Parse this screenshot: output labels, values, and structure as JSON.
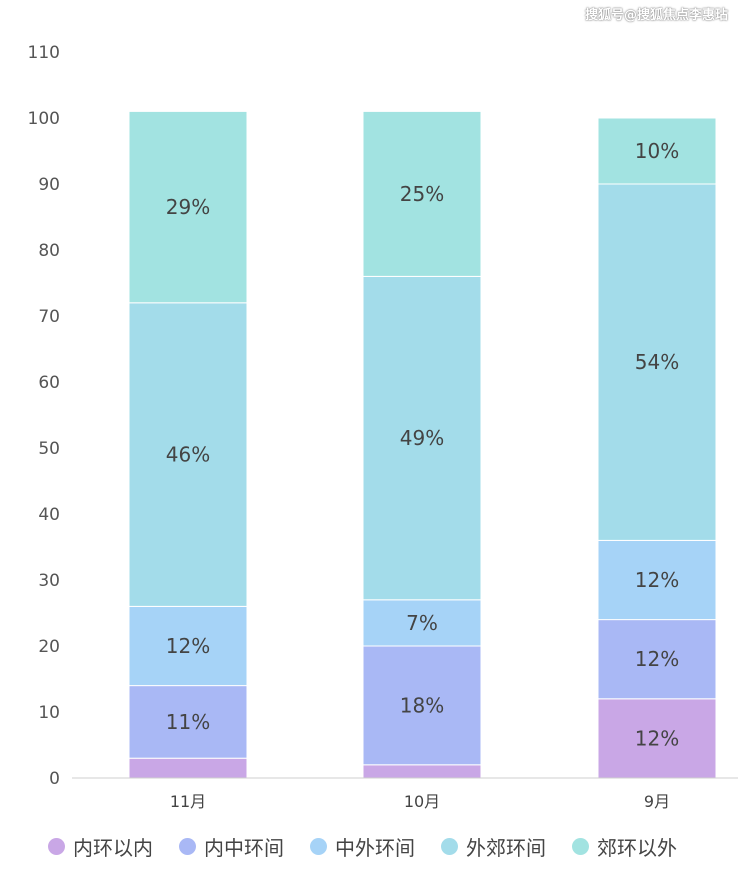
{
  "watermark": "搜狐号@搜狐焦点李惠玷",
  "chart_data": {
    "type": "bar",
    "stacked": true,
    "title": "",
    "xlabel": "",
    "ylabel": "",
    "ylim": [
      0,
      110
    ],
    "yticks": [
      0,
      10,
      20,
      30,
      40,
      50,
      60,
      70,
      80,
      90,
      100,
      110
    ],
    "grid": false,
    "legend_position": "bottom",
    "categories": [
      "11月",
      "10月",
      "9月"
    ],
    "series": [
      {
        "name": "内环以内",
        "color": "#c9a7e6",
        "values": [
          3,
          2,
          12
        ],
        "labels": [
          "",
          "",
          "12%"
        ]
      },
      {
        "name": "内中环间",
        "color": "#a9b8f5",
        "values": [
          11,
          18,
          12
        ],
        "labels": [
          "11%",
          "18%",
          "12%"
        ]
      },
      {
        "name": "中外环间",
        "color": "#a6d3f7",
        "values": [
          12,
          7,
          12
        ],
        "labels": [
          "12%",
          "7%",
          "12%"
        ]
      },
      {
        "name": "外郊环间",
        "color": "#a3dcea",
        "values": [
          46,
          49,
          54
        ],
        "labels": [
          "46%",
          "49%",
          "54%"
        ]
      },
      {
        "name": "郊环以外",
        "color": "#a2e3e1",
        "values": [
          29,
          25,
          10
        ],
        "labels": [
          "29%",
          "25%",
          "10%"
        ]
      }
    ]
  }
}
